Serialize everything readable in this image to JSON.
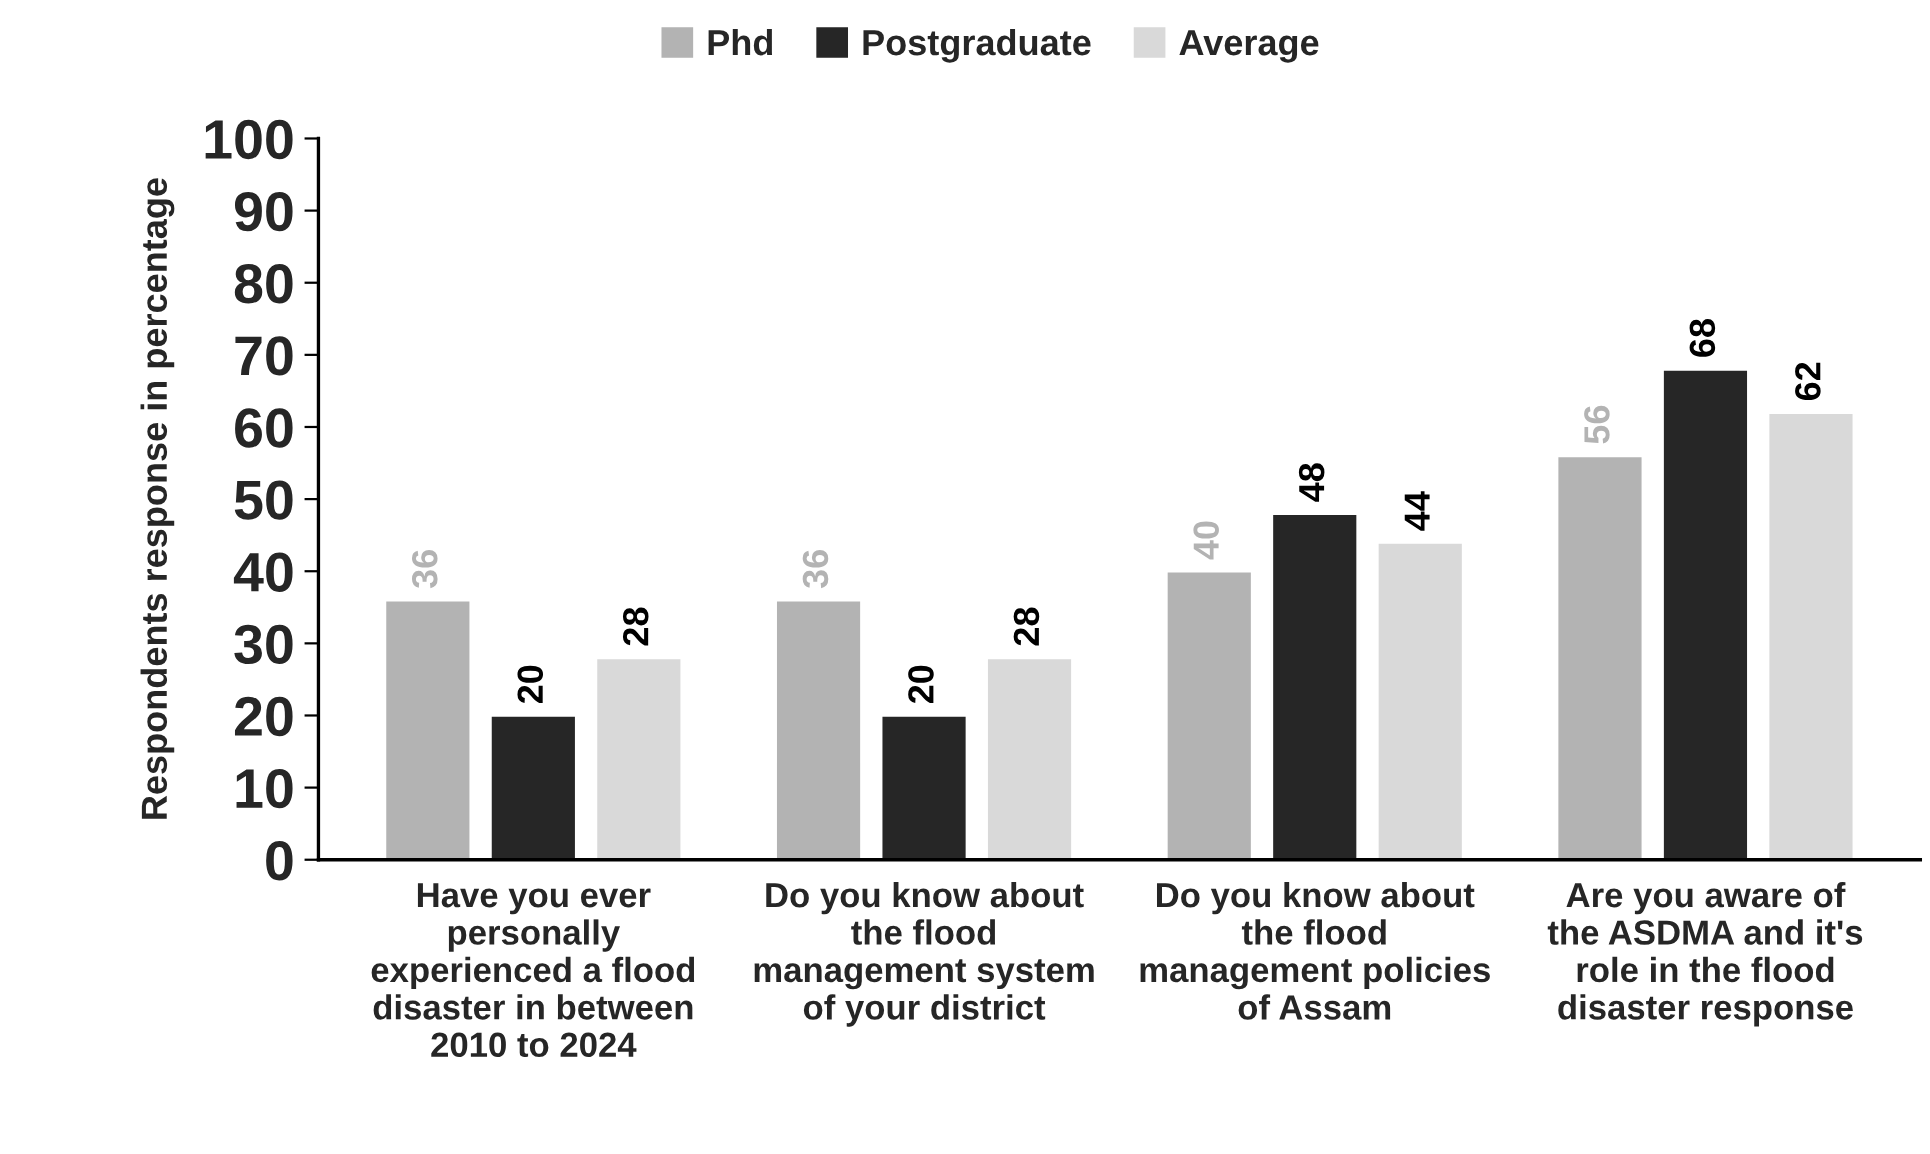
{
  "chart_data": {
    "type": "bar",
    "ylabel": "Respondents response in percentage",
    "categories": [
      "Have you ever personally experienced a flood disaster in between 2010 to 2024",
      "Do you know about the flood management system of your district",
      "Do you know about the flood management policies of Assam",
      "Are you aware of the ASDMA and it's role in the flood disaster response"
    ],
    "series": [
      {
        "name": "Phd",
        "color": "#b3b3b3",
        "values": [
          36,
          36,
          40,
          56
        ]
      },
      {
        "name": "Postgraduate",
        "color": "#262626",
        "values": [
          20,
          20,
          48,
          68
        ]
      },
      {
        "name": "Average",
        "color": "#d9d9d9",
        "values": [
          28,
          28,
          44,
          62
        ]
      }
    ],
    "ylim": [
      0,
      100
    ],
    "yticks": [
      0,
      10,
      20,
      30,
      40,
      50,
      60,
      70,
      80,
      90,
      100
    ],
    "data_labels": true,
    "legend": "top",
    "grid": false
  }
}
